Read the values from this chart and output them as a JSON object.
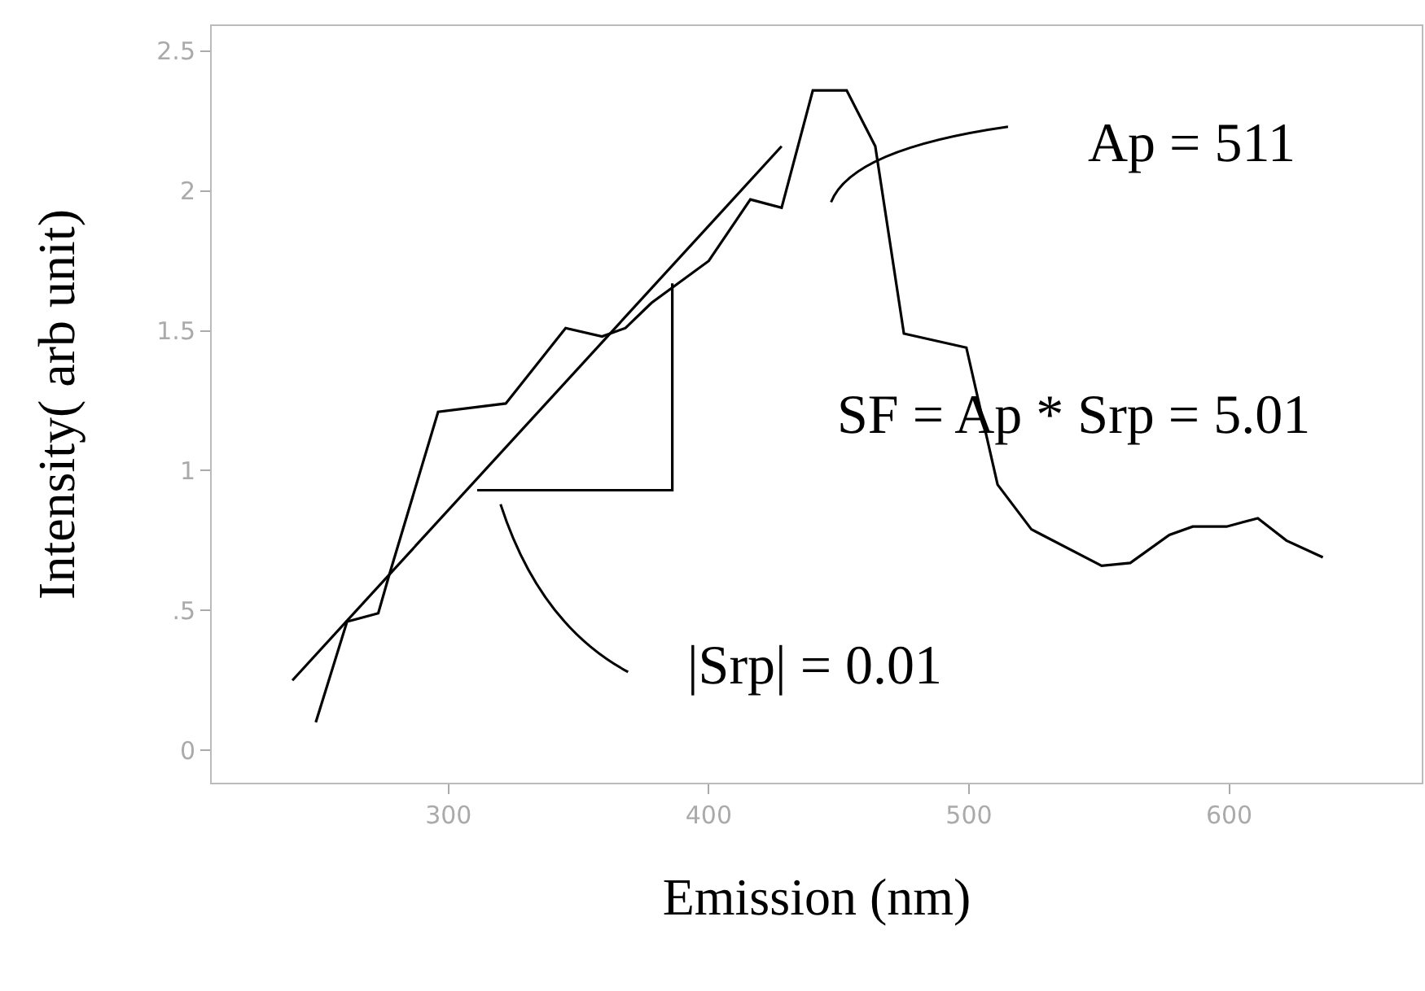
{
  "chart_data": {
    "type": "line",
    "xlabel": "Emission (nm)",
    "ylabel": "Intensity( arb unit)",
    "xlim": [
      209,
      674
    ],
    "xticks": [
      300,
      400,
      500,
      600
    ],
    "ylim": [
      -0.116,
      2.59
    ],
    "yticks": [
      0,
      {
        "value": 0.5,
        "label": ".5"
      },
      1,
      1.5,
      2,
      2.5
    ],
    "grid": false,
    "marker": "none",
    "line_style": "solid",
    "series": [
      {
        "color": "#000000",
        "x": [
          249,
          261,
          273,
          277,
          296,
          322,
          345,
          359,
          368,
          378,
          400,
          416,
          428,
          440,
          453,
          464,
          475,
          499,
          511,
          524,
          551,
          562,
          577,
          586,
          599,
          611,
          622,
          636
        ],
        "values": [
          0.1,
          0.46,
          0.49,
          0.62,
          1.21,
          1.24,
          1.51,
          1.48,
          1.51,
          1.6,
          1.75,
          1.97,
          1.94,
          2.36,
          2.36,
          2.16,
          1.49,
          1.44,
          0.95,
          0.79,
          0.66,
          0.67,
          0.77,
          0.8,
          0.8,
          0.83,
          0.75,
          0.69
        ]
      },
      {
        "color": "#000000",
        "x": [
          240,
          428
        ],
        "values": [
          0.25,
          2.16
        ]
      },
      {
        "color": "#000000",
        "x": [
          311,
          386,
          386
        ],
        "values": [
          0.93,
          0.93,
          1.67
        ]
      }
    ],
    "annotations": [
      "Ap = 511",
      "SF = Ap * Srp = 5.01",
      "|Srp| = 0.01"
    ]
  }
}
